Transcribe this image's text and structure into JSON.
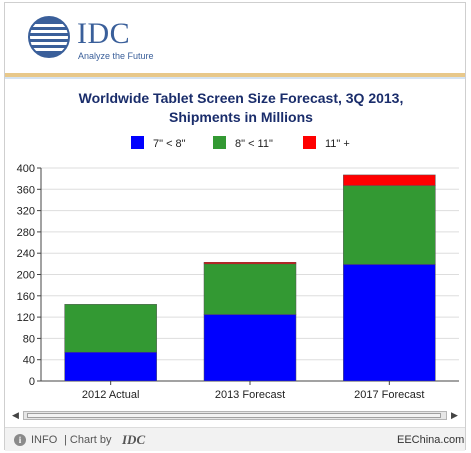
{
  "header": {
    "logo_text": "IDC",
    "logo_tagline": "Analyze the Future"
  },
  "footer": {
    "info_label": "INFO",
    "chart_by_label": "| Chart by",
    "chart_by_brand": "IDC",
    "watermark": "EEChina.com"
  },
  "colors": {
    "blue": "#0000ff",
    "green": "#339933",
    "red": "#ff0000",
    "brand": "#3a5f9a"
  },
  "chart_data": {
    "type": "bar",
    "stacked": true,
    "title": "Worldwide Tablet Screen Size Forecast, 3Q 2013,",
    "subtitle": "Shipments in Millions",
    "xlabel": "",
    "ylabel": "",
    "categories": [
      "2012 Actual",
      "2013 Forecast",
      "2017 Forecast"
    ],
    "series": [
      {
        "name": "7\" < 8\"",
        "color": "#0000ff",
        "values": [
          54,
          125,
          219
        ]
      },
      {
        "name": "8\" < 11\"",
        "color": "#339933",
        "values": [
          90,
          95,
          148
        ]
      },
      {
        "name": "11\" +",
        "color": "#ff0000",
        "values": [
          0,
          3,
          20
        ]
      }
    ],
    "ylim": [
      0,
      400
    ],
    "yticks": [
      0,
      40,
      80,
      120,
      160,
      200,
      240,
      280,
      320,
      360,
      400
    ],
    "grid": true,
    "legend_position": "top"
  }
}
